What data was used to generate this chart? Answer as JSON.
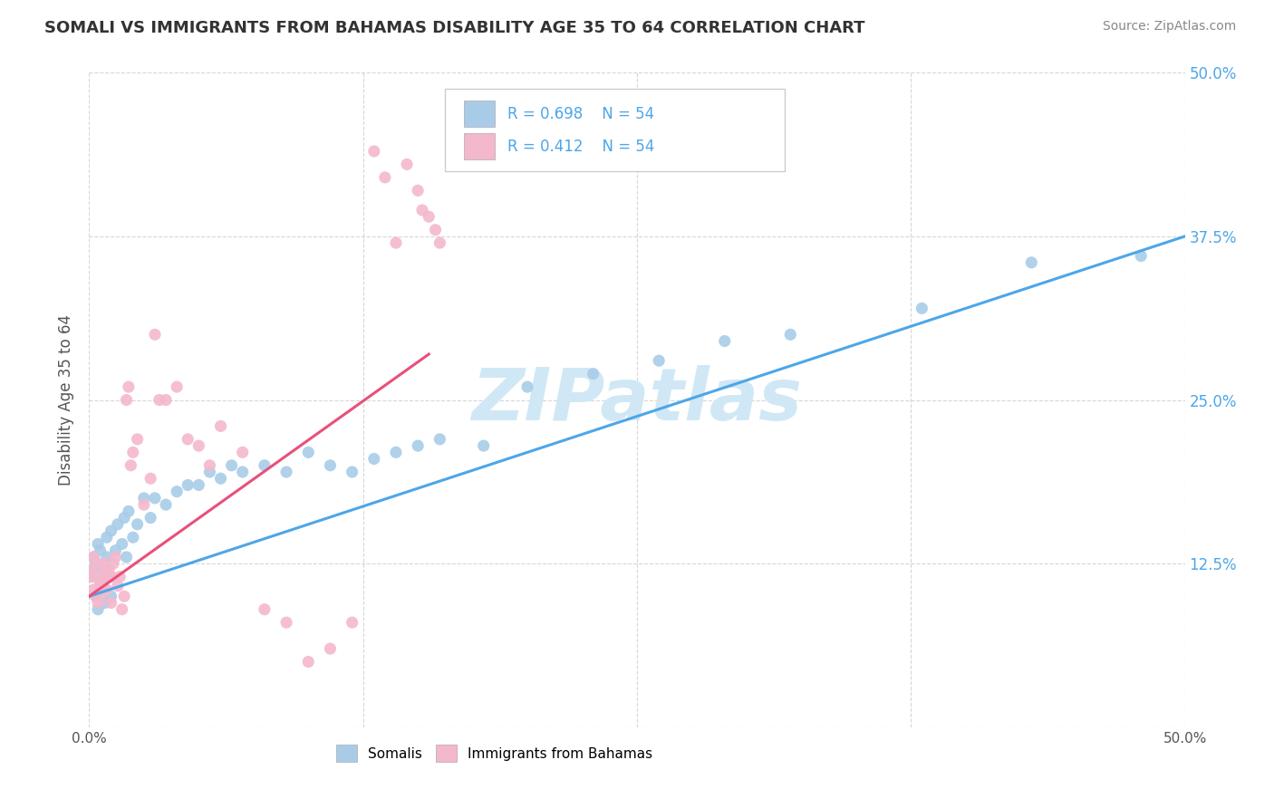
{
  "title": "SOMALI VS IMMIGRANTS FROM BAHAMAS DISABILITY AGE 35 TO 64 CORRELATION CHART",
  "source": "Source: ZipAtlas.com",
  "ylabel": "Disability Age 35 to 64",
  "xlim": [
    0,
    0.5
  ],
  "ylim": [
    0,
    0.5
  ],
  "r_somali": 0.698,
  "r_bahamas": 0.412,
  "n_somali": 54,
  "n_bahamas": 54,
  "somali_color": "#a8cce8",
  "bahamas_color": "#f4b8cc",
  "somali_line_color": "#4da6e8",
  "bahamas_line_color": "#e8507a",
  "watermark": "ZIPatlas",
  "watermark_color": "#d0e8f5",
  "somali_line_x0": 0.0,
  "somali_line_y0": 0.1,
  "somali_line_x1": 0.5,
  "somali_line_y1": 0.375,
  "bahamas_line_x0": 0.0,
  "bahamas_line_y0": 0.1,
  "bahamas_line_x1": 0.155,
  "bahamas_line_y1": 0.285,
  "somali_x": [
    0.001,
    0.002,
    0.002,
    0.003,
    0.003,
    0.004,
    0.004,
    0.005,
    0.005,
    0.006,
    0.007,
    0.007,
    0.008,
    0.008,
    0.009,
    0.01,
    0.01,
    0.012,
    0.013,
    0.015,
    0.016,
    0.017,
    0.018,
    0.02,
    0.022,
    0.025,
    0.028,
    0.03,
    0.035,
    0.04,
    0.045,
    0.05,
    0.055,
    0.06,
    0.065,
    0.07,
    0.08,
    0.09,
    0.1,
    0.11,
    0.12,
    0.13,
    0.14,
    0.15,
    0.16,
    0.18,
    0.2,
    0.23,
    0.26,
    0.29,
    0.32,
    0.38,
    0.43,
    0.48
  ],
  "somali_y": [
    0.115,
    0.12,
    0.13,
    0.1,
    0.125,
    0.09,
    0.14,
    0.105,
    0.135,
    0.11,
    0.095,
    0.12,
    0.13,
    0.145,
    0.115,
    0.1,
    0.15,
    0.135,
    0.155,
    0.14,
    0.16,
    0.13,
    0.165,
    0.145,
    0.155,
    0.175,
    0.16,
    0.175,
    0.17,
    0.18,
    0.185,
    0.185,
    0.195,
    0.19,
    0.2,
    0.195,
    0.2,
    0.195,
    0.21,
    0.2,
    0.195,
    0.205,
    0.21,
    0.215,
    0.22,
    0.215,
    0.26,
    0.27,
    0.28,
    0.295,
    0.3,
    0.32,
    0.355,
    0.36
  ],
  "bahamas_x": [
    0.001,
    0.001,
    0.002,
    0.002,
    0.003,
    0.003,
    0.004,
    0.004,
    0.005,
    0.005,
    0.006,
    0.007,
    0.007,
    0.008,
    0.008,
    0.009,
    0.01,
    0.01,
    0.011,
    0.012,
    0.013,
    0.014,
    0.015,
    0.016,
    0.017,
    0.018,
    0.019,
    0.02,
    0.022,
    0.025,
    0.028,
    0.03,
    0.032,
    0.035,
    0.04,
    0.045,
    0.05,
    0.055,
    0.06,
    0.07,
    0.08,
    0.09,
    0.1,
    0.11,
    0.12,
    0.13,
    0.135,
    0.14,
    0.145,
    0.15,
    0.152,
    0.155,
    0.158,
    0.16
  ],
  "bahamas_y": [
    0.115,
    0.12,
    0.105,
    0.13,
    0.1,
    0.115,
    0.125,
    0.095,
    0.11,
    0.1,
    0.108,
    0.118,
    0.125,
    0.105,
    0.115,
    0.12,
    0.095,
    0.115,
    0.125,
    0.13,
    0.108,
    0.115,
    0.09,
    0.1,
    0.25,
    0.26,
    0.2,
    0.21,
    0.22,
    0.17,
    0.19,
    0.3,
    0.25,
    0.25,
    0.26,
    0.22,
    0.215,
    0.2,
    0.23,
    0.21,
    0.09,
    0.08,
    0.05,
    0.06,
    0.08,
    0.44,
    0.42,
    0.37,
    0.43,
    0.41,
    0.395,
    0.39,
    0.38,
    0.37
  ]
}
